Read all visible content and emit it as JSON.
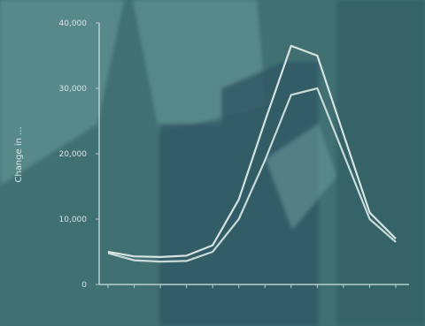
{
  "colors": {
    "bg_base": "#3f6f72",
    "bg_light": "#6f9e9f",
    "bg_dark": "#2f5b61",
    "bg_building": "#2e5863",
    "axis": "#b8d0cf",
    "tick_text": "#d9e6e3",
    "line_primary": "#e7f1ee",
    "line_secondary": "#d8e8e4"
  },
  "chart_data": {
    "type": "line",
    "ylabel": "Change in ...",
    "ylim": [
      0,
      40000
    ],
    "y_ticks": [
      0,
      10000,
      20000,
      30000,
      40000
    ],
    "y_tick_labels": [
      "0",
      "10,000",
      "20,000",
      "30,000",
      "40,000"
    ],
    "categories": [
      "",
      "",
      "",
      "",
      "",
      "",
      "",
      "",
      "",
      "",
      "",
      ""
    ],
    "series": [
      {
        "values": [
          5000,
          4300,
          4200,
          4400,
          6000,
          13000,
          25000,
          36500,
          35000,
          23000,
          11000,
          7000
        ]
      },
      {
        "values": [
          4800,
          3700,
          3500,
          3600,
          5000,
          10000,
          19000,
          29000,
          30000,
          20000,
          10000,
          6500
        ]
      }
    ],
    "grid": false,
    "legend": "none"
  }
}
